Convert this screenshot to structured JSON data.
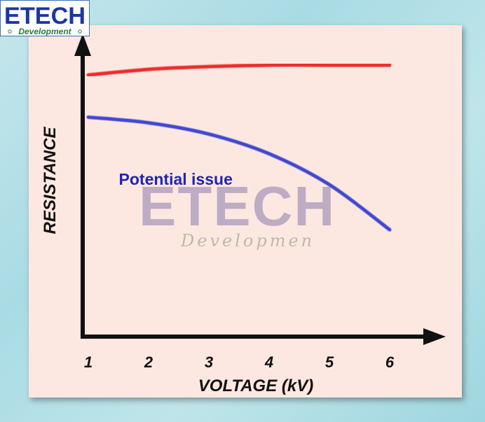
{
  "logo": {
    "brand": "ETECH",
    "tagline": "Development",
    "colors": {
      "brand": "#1c36a3",
      "tagline": "#2e7a3a"
    }
  },
  "watermark": {
    "brand": "ETECH",
    "tagline": "Developmen"
  },
  "chart_data": {
    "type": "line",
    "xlabel": "VOLTAGE (kV)",
    "ylabel": "RESISTANCE",
    "x": [
      1,
      2,
      3,
      4,
      5,
      6
    ],
    "xlim": [
      1,
      6
    ],
    "ylim": [
      0,
      1
    ],
    "y_tick_labels_shown": false,
    "grid": false,
    "series": [
      {
        "color": "#ee2b2b",
        "values": [
          0.93,
          0.95,
          0.96,
          0.965,
          0.965,
          0.965
        ]
      },
      {
        "color": "#3f47cf",
        "values": [
          0.78,
          0.76,
          0.72,
          0.65,
          0.54,
          0.38
        ]
      }
    ],
    "annotations": [
      {
        "text": "Potential issue",
        "color": "#2323b4",
        "x": 2.45,
        "y": 0.54
      }
    ]
  }
}
